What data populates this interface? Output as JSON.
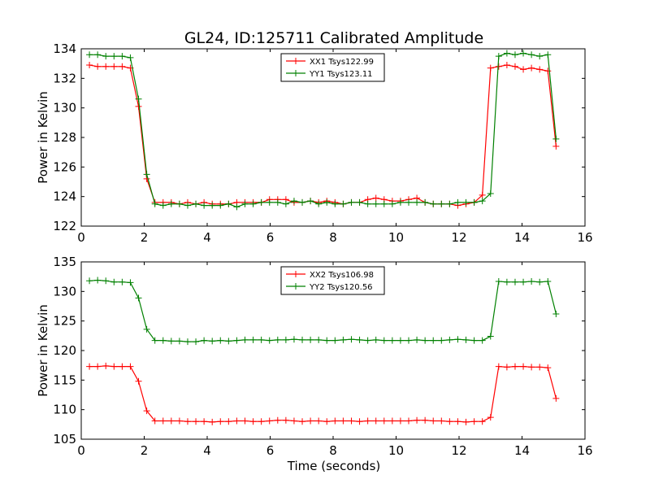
{
  "figure": {
    "title": "GL24, ID:125711 Calibrated Amplitude",
    "shared_xlabel": "Time (seconds)"
  },
  "chart_data": [
    {
      "type": "line",
      "title": "GL24, ID:125711 Calibrated Amplitude",
      "xlabel": "",
      "ylabel": "Power in Kelvin",
      "xlim": [
        0,
        16
      ],
      "ylim": [
        122,
        134
      ],
      "xticks": [
        0,
        2,
        4,
        6,
        8,
        10,
        12,
        14,
        16
      ],
      "yticks": [
        122,
        124,
        126,
        128,
        130,
        132,
        134
      ],
      "grid": false,
      "legend_position": "top-center",
      "x": [
        0.26,
        0.52,
        0.78,
        1.04,
        1.3,
        1.56,
        1.82,
        2.08,
        2.34,
        2.6,
        2.86,
        3.12,
        3.38,
        3.64,
        3.9,
        4.16,
        4.42,
        4.68,
        4.94,
        5.2,
        5.46,
        5.72,
        5.98,
        6.24,
        6.5,
        6.76,
        7.02,
        7.28,
        7.54,
        7.8,
        8.06,
        8.32,
        8.58,
        8.84,
        9.1,
        9.36,
        9.62,
        9.88,
        10.14,
        10.4,
        10.66,
        10.92,
        11.18,
        11.44,
        11.7,
        11.96,
        12.22,
        12.48,
        12.74,
        13.0,
        13.26,
        13.52,
        13.78,
        14.04,
        14.3,
        14.56,
        14.82,
        15.08
      ],
      "series": [
        {
          "name": "XX1 Tsys122.99",
          "color": "#ff0000",
          "values": [
            132.9,
            132.8,
            132.8,
            132.8,
            132.8,
            132.7,
            130.1,
            125.2,
            123.6,
            123.6,
            123.6,
            123.5,
            123.6,
            123.5,
            123.6,
            123.5,
            123.5,
            123.5,
            123.6,
            123.6,
            123.6,
            123.6,
            123.8,
            123.8,
            123.8,
            123.6,
            123.6,
            123.7,
            123.6,
            123.7,
            123.6,
            123.5,
            123.6,
            123.6,
            123.8,
            123.9,
            123.8,
            123.7,
            123.7,
            123.8,
            123.9,
            123.6,
            123.5,
            123.5,
            123.5,
            123.4,
            123.5,
            123.6,
            124.1,
            132.7,
            132.8,
            132.9,
            132.8,
            132.6,
            132.7,
            132.6,
            132.5,
            127.4
          ]
        },
        {
          "name": "YY1 Tsys123.11",
          "color": "#008000",
          "values": [
            133.6,
            133.6,
            133.5,
            133.5,
            133.5,
            133.4,
            130.6,
            125.5,
            123.5,
            123.4,
            123.5,
            123.5,
            123.4,
            123.5,
            123.4,
            123.4,
            123.4,
            123.5,
            123.3,
            123.5,
            123.5,
            123.6,
            123.6,
            123.6,
            123.5,
            123.7,
            123.6,
            123.7,
            123.5,
            123.6,
            123.5,
            123.5,
            123.6,
            123.6,
            123.5,
            123.5,
            123.5,
            123.5,
            123.6,
            123.6,
            123.6,
            123.6,
            123.5,
            123.5,
            123.5,
            123.6,
            123.6,
            123.6,
            123.7,
            124.2,
            133.5,
            133.7,
            133.6,
            133.7,
            133.6,
            133.5,
            133.6,
            127.9
          ]
        }
      ]
    },
    {
      "type": "line",
      "title": "",
      "xlabel": "Time (seconds)",
      "ylabel": "Power in Kelvin",
      "xlim": [
        0,
        16
      ],
      "ylim": [
        105,
        135
      ],
      "xticks": [
        0,
        2,
        4,
        6,
        8,
        10,
        12,
        14,
        16
      ],
      "yticks": [
        105,
        110,
        115,
        120,
        125,
        130,
        135
      ],
      "grid": false,
      "legend_position": "top-center",
      "x": [
        0.26,
        0.52,
        0.78,
        1.04,
        1.3,
        1.56,
        1.82,
        2.08,
        2.34,
        2.6,
        2.86,
        3.12,
        3.38,
        3.64,
        3.9,
        4.16,
        4.42,
        4.68,
        4.94,
        5.2,
        5.46,
        5.72,
        5.98,
        6.24,
        6.5,
        6.76,
        7.02,
        7.28,
        7.54,
        7.8,
        8.06,
        8.32,
        8.58,
        8.84,
        9.1,
        9.36,
        9.62,
        9.88,
        10.14,
        10.4,
        10.66,
        10.92,
        11.18,
        11.44,
        11.7,
        11.96,
        12.22,
        12.48,
        12.74,
        13.0,
        13.26,
        13.52,
        13.78,
        14.04,
        14.3,
        14.56,
        14.82,
        15.08
      ],
      "series": [
        {
          "name": "XX2 Tsys106.98",
          "color": "#ff0000",
          "values": [
            117.3,
            117.3,
            117.4,
            117.3,
            117.3,
            117.3,
            114.8,
            109.8,
            108.1,
            108.1,
            108.1,
            108.1,
            108.0,
            108.0,
            108.0,
            107.9,
            108.0,
            108.0,
            108.1,
            108.1,
            108.0,
            108.0,
            108.1,
            108.2,
            108.2,
            108.1,
            108.0,
            108.1,
            108.1,
            108.0,
            108.1,
            108.1,
            108.1,
            108.0,
            108.1,
            108.1,
            108.1,
            108.1,
            108.1,
            108.1,
            108.2,
            108.2,
            108.1,
            108.1,
            108.0,
            108.0,
            107.9,
            108.0,
            108.0,
            108.7,
            117.3,
            117.2,
            117.3,
            117.3,
            117.2,
            117.2,
            117.1,
            111.9
          ]
        },
        {
          "name": "YY2 Tsys120.56",
          "color": "#008000",
          "values": [
            131.8,
            131.9,
            131.8,
            131.6,
            131.6,
            131.5,
            128.9,
            123.6,
            121.7,
            121.7,
            121.6,
            121.6,
            121.5,
            121.5,
            121.7,
            121.6,
            121.7,
            121.6,
            121.7,
            121.8,
            121.8,
            121.8,
            121.7,
            121.8,
            121.8,
            121.9,
            121.8,
            121.8,
            121.8,
            121.7,
            121.7,
            121.8,
            121.9,
            121.8,
            121.7,
            121.8,
            121.7,
            121.7,
            121.7,
            121.7,
            121.8,
            121.7,
            121.7,
            121.7,
            121.8,
            121.9,
            121.8,
            121.7,
            121.7,
            122.4,
            131.7,
            131.6,
            131.6,
            131.6,
            131.7,
            131.6,
            131.7,
            126.2
          ]
        }
      ]
    }
  ]
}
